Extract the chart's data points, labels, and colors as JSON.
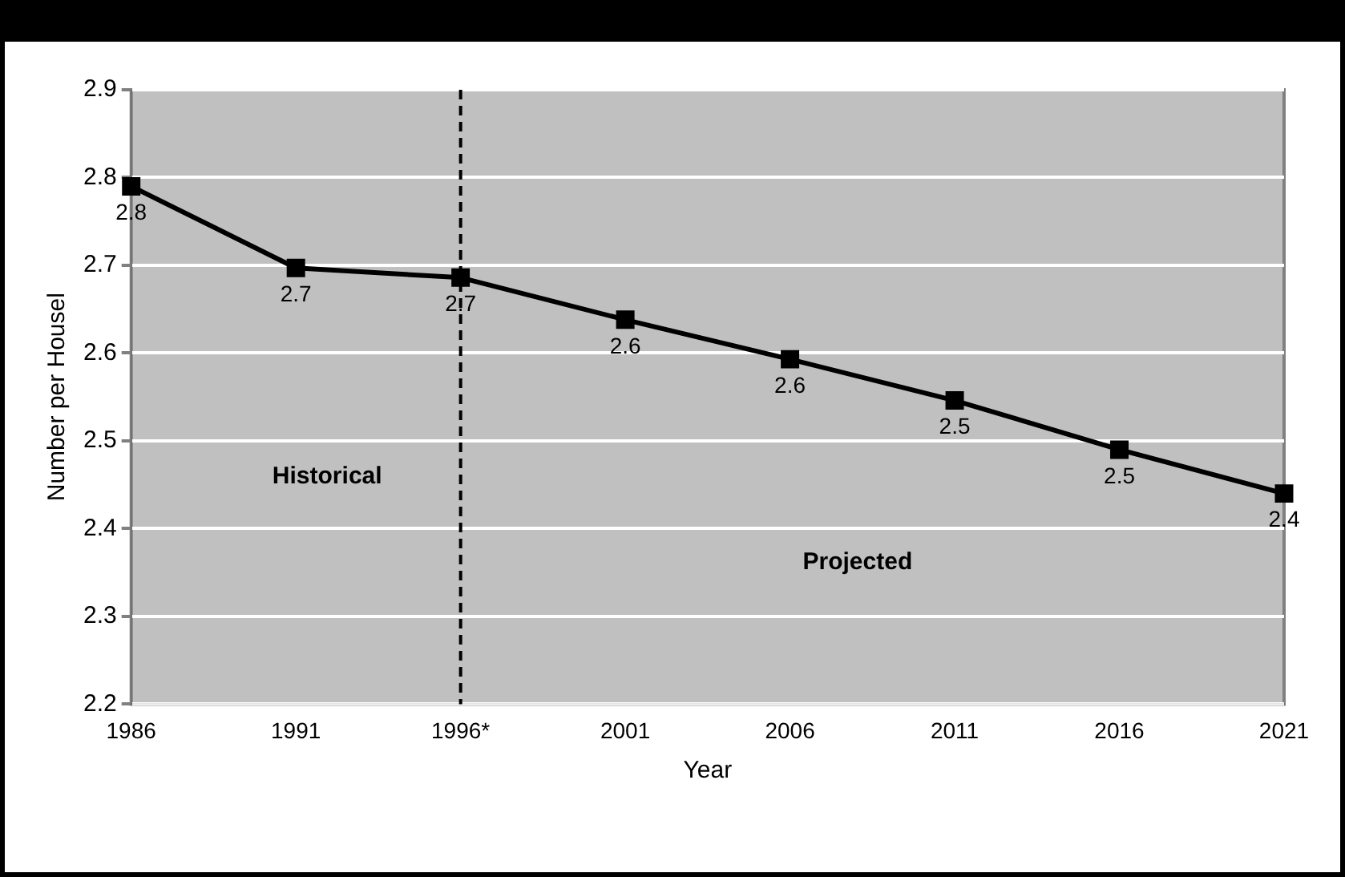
{
  "chart_data": {
    "type": "line",
    "xlabel": "Year",
    "ylabel": "Number per Housel",
    "categories": [
      "1986",
      "1991",
      "1996*",
      "2001",
      "2006",
      "2011",
      "2016",
      "2021"
    ],
    "series": [
      {
        "color": "#000000",
        "values": [
          2.79,
          2.697,
          2.686,
          2.638,
          2.593,
          2.546,
          2.49,
          2.44
        ],
        "value_labels": [
          "2.8",
          "2.7",
          "2.7",
          "2.6",
          "2.6",
          "2.5",
          "2.5",
          "2.4"
        ]
      }
    ],
    "ylim": [
      2.2,
      2.9
    ],
    "yticks": [
      2.2,
      2.3,
      2.4,
      2.5,
      2.6,
      2.7,
      2.8,
      2.9
    ],
    "grid": "y",
    "legend": false,
    "marker": "square",
    "line_style": "solid",
    "ref_lines": [
      {
        "axis": "x",
        "value": "1996*",
        "color": "#000000",
        "line_style": "dashed"
      }
    ],
    "annotations": [
      "Historical",
      "Projected"
    ]
  }
}
